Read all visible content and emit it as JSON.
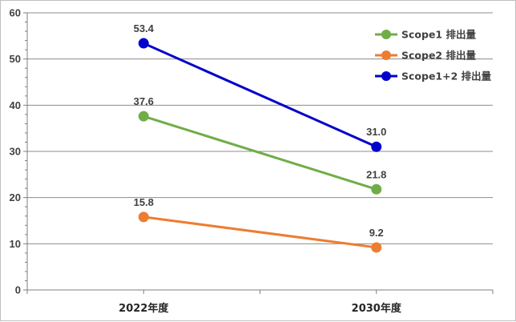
{
  "chart_data": {
    "type": "line",
    "title": "",
    "xlabel": "",
    "ylabel": "",
    "categories": [
      "2022年度",
      "2030年度"
    ],
    "ylim": [
      0,
      60
    ],
    "yticks": [
      "0",
      "10",
      "20",
      "30",
      "40",
      "50",
      "60"
    ],
    "grid": true,
    "legend_position": "top-right",
    "series": [
      {
        "name": "Scope1 排出量",
        "color": "#70ad47",
        "values": [
          37.6,
          21.8
        ],
        "labels": [
          "37.6",
          "21.8"
        ]
      },
      {
        "name": "Scope2 排出量",
        "color": "#ed7d31",
        "values": [
          15.8,
          9.2
        ],
        "labels": [
          "15.8",
          "9.2"
        ]
      },
      {
        "name": "Scope1+2 排出量",
        "color": "#0000cc",
        "values": [
          53.4,
          31.0
        ],
        "labels": [
          "53.4",
          "31.0"
        ]
      }
    ]
  }
}
